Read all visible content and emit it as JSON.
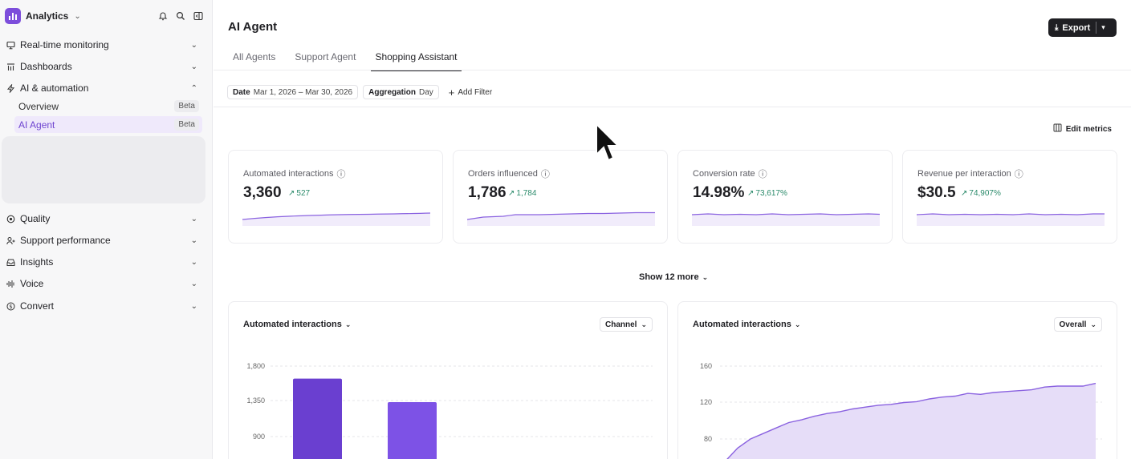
{
  "sidebar": {
    "brand": "Analytics",
    "items": [
      {
        "label": "Real-time monitoring",
        "icon": "monitor-icon"
      },
      {
        "label": "Dashboards",
        "icon": "dashboard-icon"
      },
      {
        "label": "AI & automation",
        "icon": "bolt-icon"
      },
      {
        "label": "Quality",
        "icon": "quality-icon"
      },
      {
        "label": "Support performance",
        "icon": "people-icon"
      },
      {
        "label": "Insights",
        "icon": "inbox-icon"
      },
      {
        "label": "Voice",
        "icon": "waveform-icon"
      },
      {
        "label": "Convert",
        "icon": "dollar-icon"
      }
    ],
    "sub_items": [
      {
        "label": "Overview",
        "badge": "Beta"
      },
      {
        "label": "AI Agent",
        "badge": "Beta"
      }
    ]
  },
  "header": {
    "title": "AI Agent",
    "export_label": "Export"
  },
  "tabs": [
    {
      "label": "All Agents"
    },
    {
      "label": "Support Agent"
    },
    {
      "label": "Shopping Assistant"
    }
  ],
  "filters": {
    "date_key": "Date",
    "date_value": "Mar 1, 2026 – Mar 30, 2026",
    "agg_key": "Aggregation",
    "agg_value": "Day",
    "add_filter": "Add Filter"
  },
  "edit_metrics": "Edit metrics",
  "kpis": [
    {
      "title": "Automated interactions",
      "value": "3,360",
      "delta": "527"
    },
    {
      "title": "Orders influenced",
      "value": "1,786",
      "delta": "1,784"
    },
    {
      "title": "Conversion rate",
      "value": "14.98%",
      "delta": "73,617%"
    },
    {
      "title": "Revenue per interaction",
      "value": "$30.5",
      "delta": "74,907%"
    }
  ],
  "show_more": "Show 12 more",
  "panels": [
    {
      "title": "Automated interactions",
      "select": "Channel"
    },
    {
      "title": "Automated interactions",
      "select": "Overall"
    }
  ],
  "colors": {
    "accent": "#7c4ddb",
    "positive": "#2a8a6a",
    "bar_dark": "#6a3fd0",
    "bar_light": "#7d52e6",
    "area_fill": "#e6ddf8"
  },
  "chart_data": [
    {
      "type": "bar",
      "title": "Automated interactions",
      "ytick_labels": [
        "1,800",
        "1,350",
        "900"
      ],
      "ylim": [
        900,
        1800
      ],
      "categories": [
        "",
        ""
      ],
      "values": [
        1640,
        1340
      ]
    },
    {
      "type": "area",
      "title": "Automated interactions",
      "ytick_labels": [
        "160",
        "120",
        "80"
      ],
      "ylim": [
        80,
        160
      ],
      "x": [
        1,
        2,
        3,
        4,
        5,
        6,
        7,
        8,
        9,
        10,
        11,
        12,
        13,
        14,
        15,
        16,
        17,
        18,
        19,
        20,
        21,
        22,
        23,
        24,
        25,
        26,
        27,
        28,
        29,
        30
      ],
      "values": [
        55,
        70,
        80,
        86,
        92,
        98,
        101,
        105,
        108,
        110,
        113,
        115,
        117,
        118,
        120,
        121,
        124,
        126,
        127,
        130,
        129,
        131,
        132,
        133,
        134,
        137,
        138,
        138,
        138,
        141
      ]
    }
  ]
}
